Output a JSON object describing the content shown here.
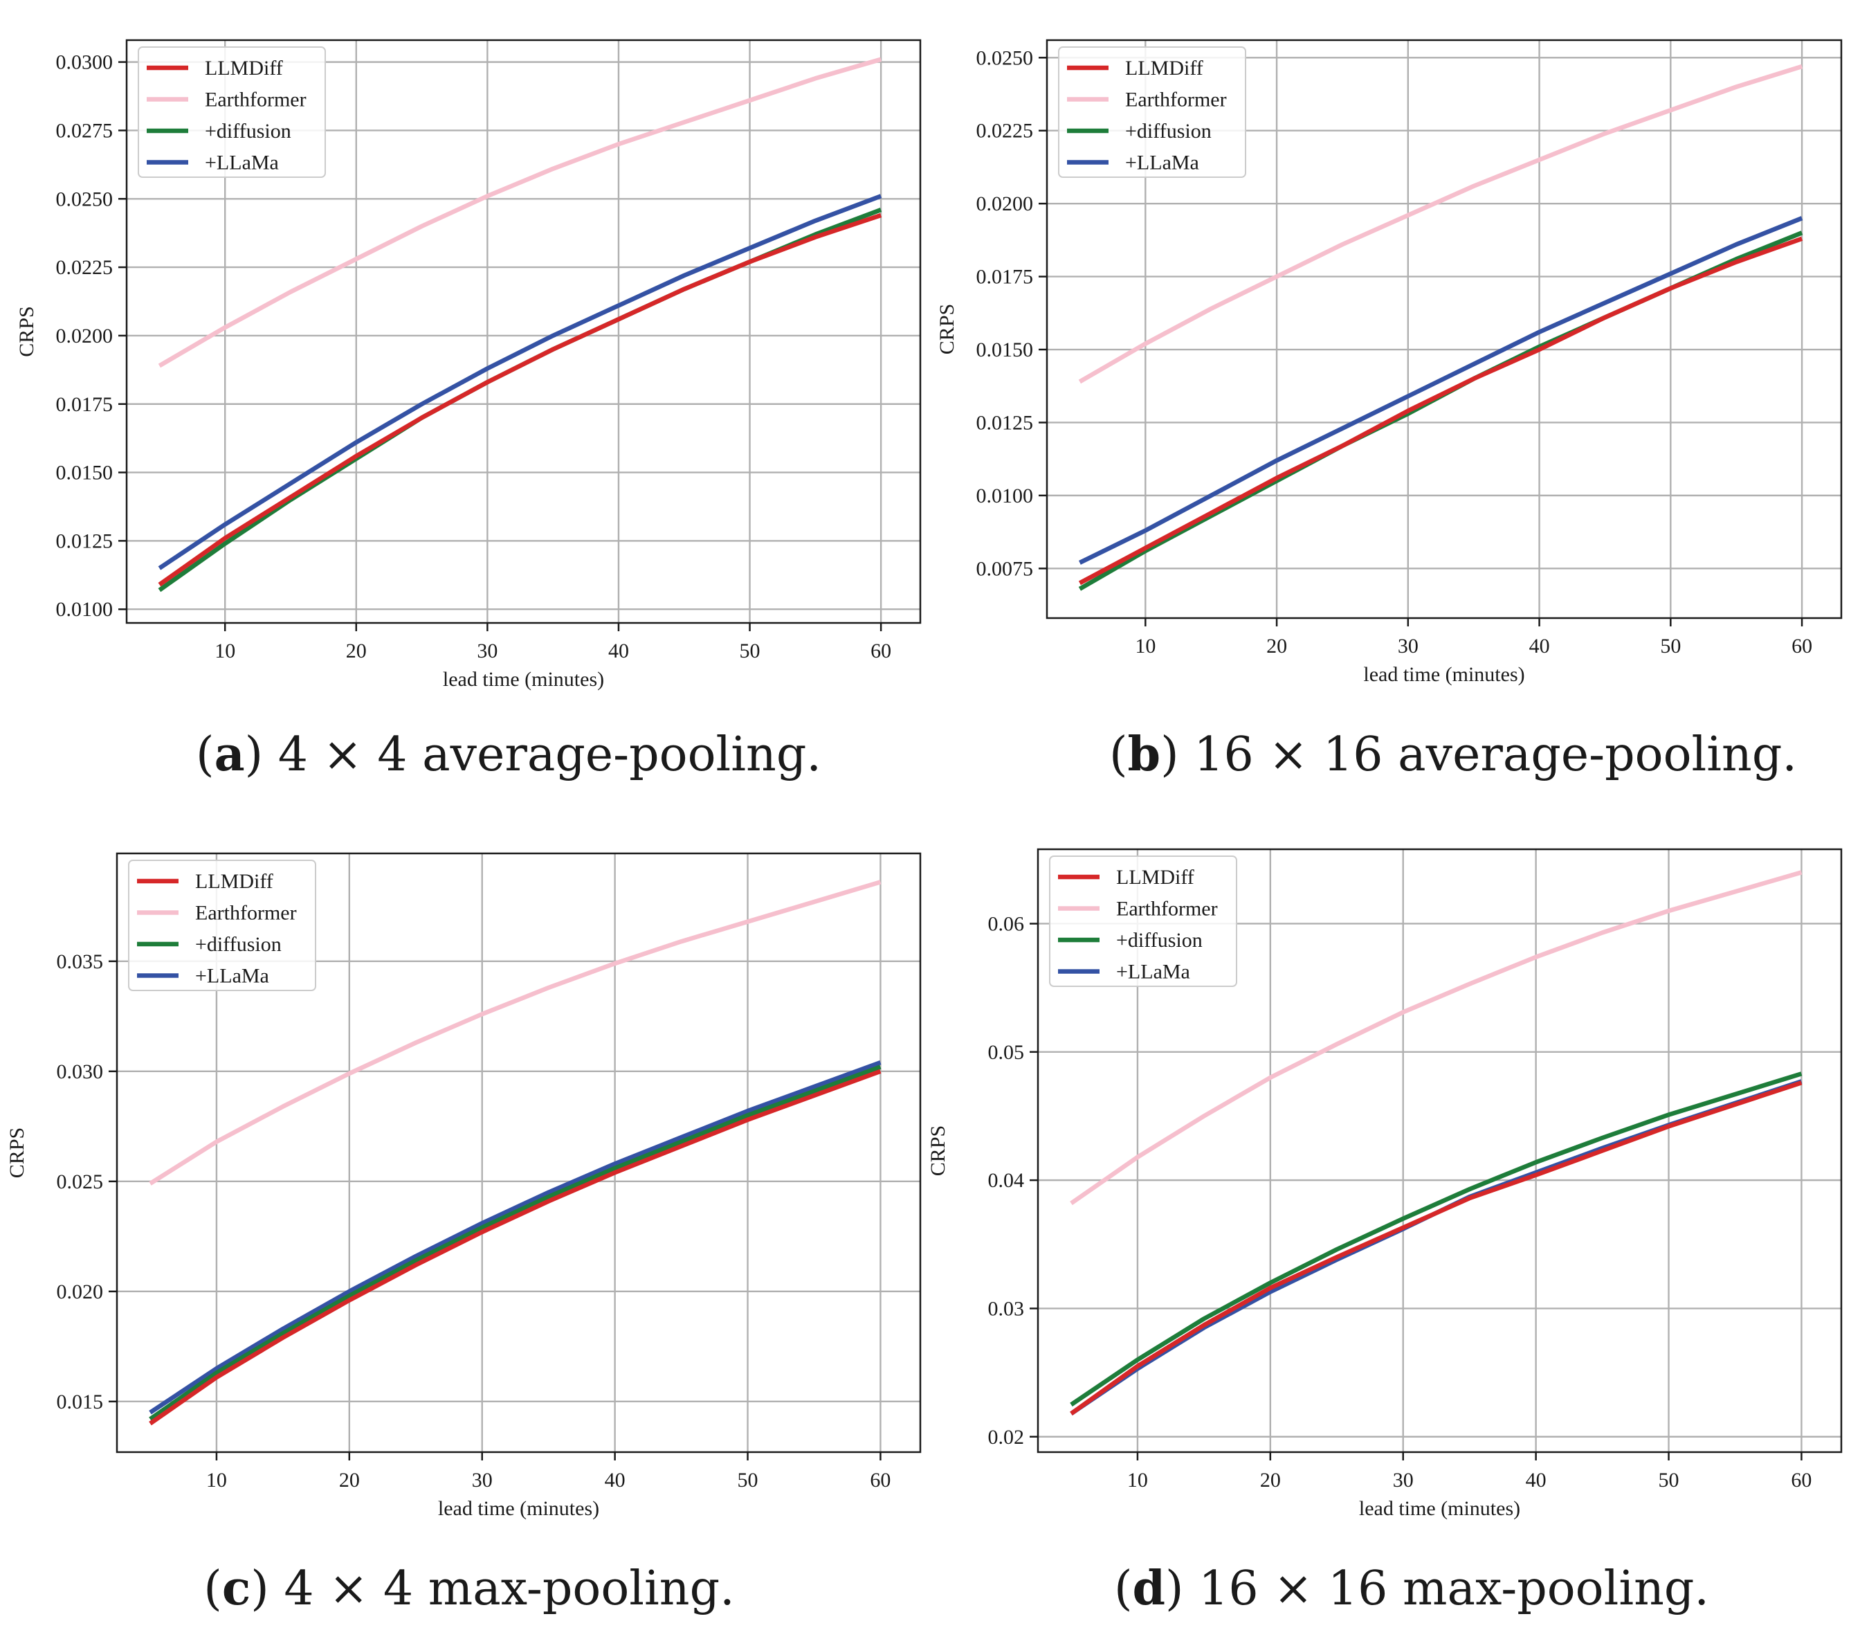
{
  "colors": {
    "LLMDiff": "#d62728",
    "Earthformer": "#f6bfcd",
    "+diffusion": "#1e7d3a",
    "+LLaMa": "#3452a4"
  },
  "chart_data": [
    {
      "type": "line",
      "panel": "a",
      "caption_letter": "a",
      "caption_text": " 4 × 4 average-pooling.",
      "xlabel": "lead time (minutes)",
      "ylabel": "CRPS",
      "xlim": [
        2.5,
        63
      ],
      "ylim": [
        0.0095,
        0.0308
      ],
      "xticks": [
        10,
        20,
        30,
        40,
        50,
        60
      ],
      "yticks": [
        "0.0100",
        "0.0125",
        "0.0150",
        "0.0175",
        "0.0200",
        "0.0225",
        "0.0250",
        "0.0275",
        "0.0300"
      ],
      "grid": true,
      "legend": "top-left",
      "x": [
        5,
        10,
        15,
        20,
        25,
        30,
        35,
        40,
        45,
        50,
        55,
        60
      ],
      "series": [
        {
          "name": "Earthformer",
          "values": [
            0.0189,
            0.0203,
            0.0216,
            0.0228,
            0.024,
            0.0251,
            0.0261,
            0.027,
            0.0278,
            0.0286,
            0.0294,
            0.0301
          ]
        },
        {
          "name": "+LLaMa",
          "values": [
            0.0115,
            0.0131,
            0.0146,
            0.0161,
            0.0175,
            0.0188,
            0.02,
            0.0211,
            0.0222,
            0.0232,
            0.0242,
            0.0251
          ]
        },
        {
          "name": "+diffusion",
          "values": [
            0.0107,
            0.0124,
            0.014,
            0.0155,
            0.017,
            0.0183,
            0.0195,
            0.0206,
            0.0217,
            0.0227,
            0.0237,
            0.0246
          ]
        },
        {
          "name": "LLMDiff",
          "values": [
            0.0109,
            0.0126,
            0.0141,
            0.0156,
            0.017,
            0.0183,
            0.0195,
            0.0206,
            0.0217,
            0.0227,
            0.0236,
            0.0244
          ]
        }
      ],
      "legend_order": [
        "LLMDiff",
        "Earthformer",
        "+diffusion",
        "+LLaMa"
      ]
    },
    {
      "type": "line",
      "panel": "b",
      "caption_letter": "b",
      "caption_text": " 16 × 16 average-pooling.",
      "xlabel": "lead time (minutes)",
      "ylabel": "CRPS",
      "xlim": [
        2.5,
        63
      ],
      "ylim": [
        0.0058,
        0.0256
      ],
      "xticks": [
        10,
        20,
        30,
        40,
        50,
        60
      ],
      "yticks": [
        "0.0075",
        "0.0100",
        "0.0125",
        "0.0150",
        "0.0175",
        "0.0200",
        "0.0225",
        "0.0250"
      ],
      "grid": true,
      "legend": "top-left",
      "x": [
        5,
        10,
        15,
        20,
        25,
        30,
        35,
        40,
        45,
        50,
        55,
        60
      ],
      "series": [
        {
          "name": "Earthformer",
          "values": [
            0.0139,
            0.0152,
            0.0164,
            0.0175,
            0.0186,
            0.0196,
            0.0206,
            0.0215,
            0.0224,
            0.0232,
            0.024,
            0.0247
          ]
        },
        {
          "name": "+LLaMa",
          "values": [
            0.0077,
            0.0088,
            0.01,
            0.0112,
            0.0123,
            0.0134,
            0.0145,
            0.0156,
            0.0166,
            0.0176,
            0.0186,
            0.0195
          ]
        },
        {
          "name": "+diffusion",
          "values": [
            0.0068,
            0.0081,
            0.0093,
            0.0105,
            0.0117,
            0.0128,
            0.014,
            0.0151,
            0.0161,
            0.0171,
            0.0181,
            0.019
          ]
        },
        {
          "name": "LLMDiff",
          "values": [
            0.007,
            0.0082,
            0.0094,
            0.0106,
            0.0117,
            0.0129,
            0.014,
            0.015,
            0.0161,
            0.0171,
            0.018,
            0.0188
          ]
        }
      ],
      "legend_order": [
        "LLMDiff",
        "Earthformer",
        "+diffusion",
        "+LLaMa"
      ]
    },
    {
      "type": "line",
      "panel": "c",
      "caption_letter": "c",
      "caption_text": " 4 × 4 max-pooling.",
      "xlabel": "lead time (minutes)",
      "ylabel": "CRPS",
      "xlim": [
        2.5,
        63
      ],
      "ylim": [
        0.0127,
        0.0399
      ],
      "xticks": [
        10,
        20,
        30,
        40,
        50,
        60
      ],
      "yticks": [
        "0.015",
        "0.020",
        "0.025",
        "0.030",
        "0.035"
      ],
      "grid": true,
      "legend": "top-left",
      "x": [
        5,
        10,
        15,
        20,
        25,
        30,
        35,
        40,
        45,
        50,
        55,
        60
      ],
      "series": [
        {
          "name": "Earthformer",
          "values": [
            0.0249,
            0.0268,
            0.0284,
            0.0299,
            0.0313,
            0.0326,
            0.0338,
            0.0349,
            0.0359,
            0.0368,
            0.0377,
            0.0386
          ]
        },
        {
          "name": "+LLaMa",
          "values": [
            0.0145,
            0.0165,
            0.0183,
            0.02,
            0.0216,
            0.0231,
            0.0245,
            0.0258,
            0.027,
            0.0282,
            0.0293,
            0.0304
          ]
        },
        {
          "name": "+diffusion",
          "values": [
            0.0142,
            0.0163,
            0.0181,
            0.0198,
            0.0214,
            0.0229,
            0.0243,
            0.0256,
            0.0268,
            0.028,
            0.0291,
            0.0302
          ]
        },
        {
          "name": "LLMDiff",
          "values": [
            0.014,
            0.0161,
            0.0179,
            0.0196,
            0.0212,
            0.0227,
            0.0241,
            0.0254,
            0.0266,
            0.0278,
            0.0289,
            0.03
          ]
        }
      ],
      "legend_order": [
        "LLMDiff",
        "Earthformer",
        "+diffusion",
        "+LLaMa"
      ]
    },
    {
      "type": "line",
      "panel": "d",
      "caption_letter": "d",
      "caption_text": " 16 × 16 max-pooling.",
      "xlabel": "lead time (minutes)",
      "ylabel": "CRPS",
      "xlim": [
        2.5,
        63
      ],
      "ylim": [
        0.0188,
        0.0658
      ],
      "xticks": [
        10,
        20,
        30,
        40,
        50,
        60
      ],
      "yticks": [
        "0.02",
        "0.03",
        "0.04",
        "0.05",
        "0.06"
      ],
      "grid": true,
      "legend": "top-left",
      "x": [
        5,
        10,
        15,
        20,
        25,
        30,
        35,
        40,
        45,
        50,
        55,
        60
      ],
      "series": [
        {
          "name": "Earthformer",
          "values": [
            0.0382,
            0.0418,
            0.045,
            0.048,
            0.0506,
            0.0531,
            0.0553,
            0.0574,
            0.0593,
            0.061,
            0.0625,
            0.064
          ]
        },
        {
          "name": "+LLaMa",
          "values": [
            0.0218,
            0.0253,
            0.0285,
            0.0313,
            0.0338,
            0.0362,
            0.0387,
            0.0406,
            0.0425,
            0.0443,
            0.046,
            0.0477
          ]
        },
        {
          "name": "LLMDiff",
          "values": [
            0.0218,
            0.0255,
            0.0287,
            0.0316,
            0.034,
            0.0363,
            0.0386,
            0.0404,
            0.0423,
            0.0442,
            0.0459,
            0.0476
          ]
        },
        {
          "name": "+diffusion",
          "values": [
            0.0225,
            0.026,
            0.0292,
            0.032,
            0.0346,
            0.037,
            0.0393,
            0.0414,
            0.0433,
            0.0451,
            0.0467,
            0.0483
          ]
        }
      ],
      "legend_order": [
        "LLMDiff",
        "Earthformer",
        "+diffusion",
        "+LLaMa"
      ]
    }
  ]
}
